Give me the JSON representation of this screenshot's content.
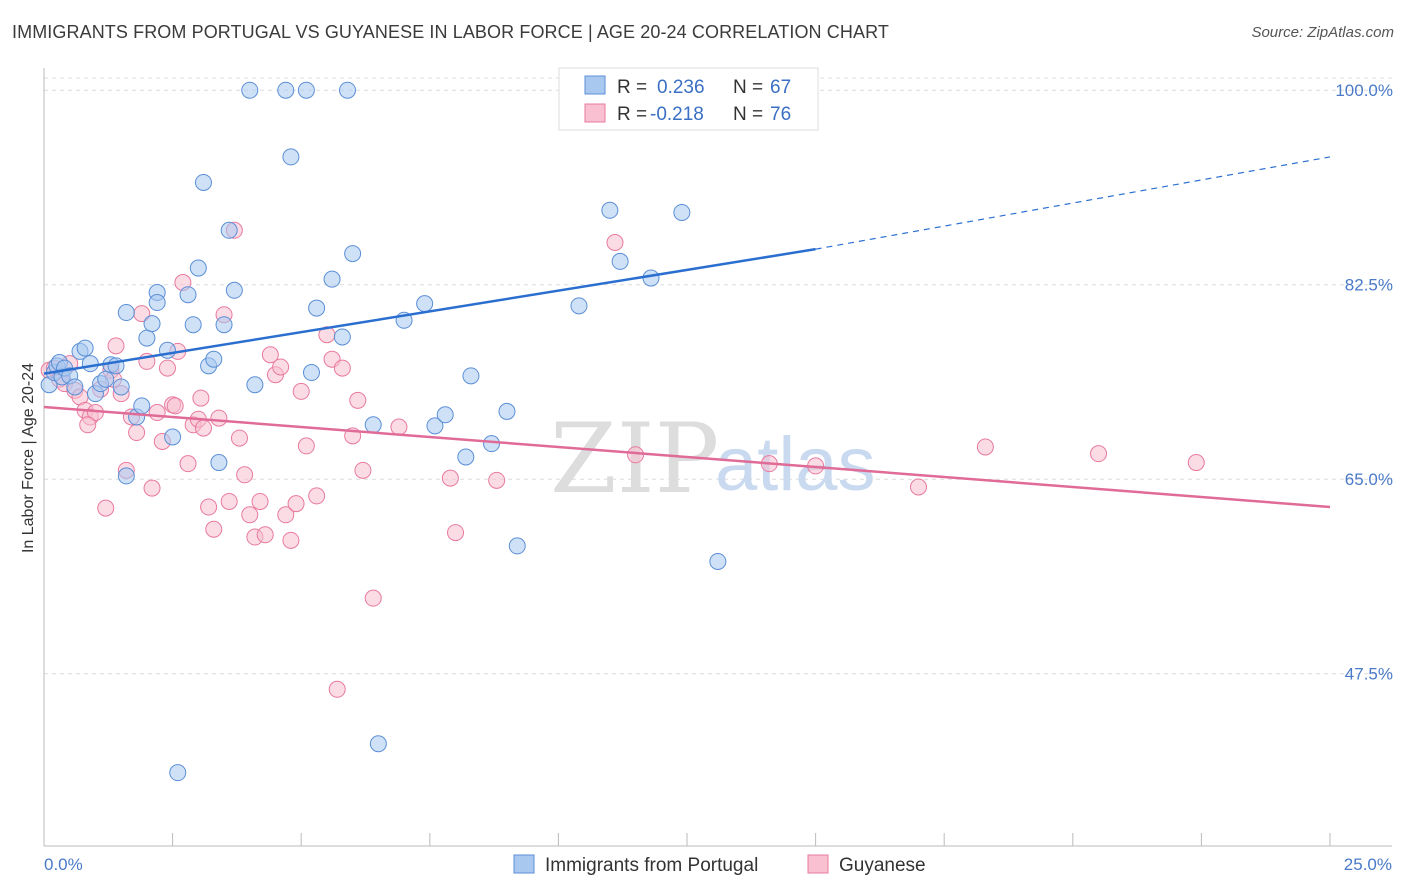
{
  "title": "IMMIGRANTS FROM PORTUGAL VS GUYANESE IN LABOR FORCE | AGE 20-24 CORRELATION CHART",
  "source": "Source: ZipAtlas.com",
  "watermark": {
    "zip": "ZIP",
    "atlas": "atlas"
  },
  "chart_data": {
    "type": "scatter",
    "xlabel": "",
    "ylabel": "In Labor Force | Age 20-24",
    "xlim": [
      0,
      25
    ],
    "ylim": [
      32.0,
      102.0
    ],
    "x_tick_labels": [
      "0.0%",
      "25.0%"
    ],
    "y_ticks": [
      47.5,
      65.0,
      82.5,
      100.0
    ],
    "y_tick_labels": [
      "47.5%",
      "65.0%",
      "82.5%",
      "100.0%"
    ],
    "grid": true,
    "legend_top": [
      {
        "r_label": "R = ",
        "r_value": "0.236",
        "n_label": "N = ",
        "n_value": "67"
      },
      {
        "r_label": "R = ",
        "r_value": "-0.218",
        "n_label": "N = ",
        "n_value": "76"
      }
    ],
    "series": [
      {
        "name": "Immigrants from Portugal",
        "color": "#a8c8f0",
        "stroke": "#5b8fd6",
        "trend": {
          "x0": 0,
          "y0": 74.5,
          "x1": 15,
          "y1": 85.7,
          "dash_to_x": 25,
          "dash_to_y": 94.0,
          "color": "#2a6fd0"
        },
        "points": [
          [
            0.1,
            73.5
          ],
          [
            0.2,
            74.6
          ],
          [
            0.25,
            75.2
          ],
          [
            0.3,
            75.5
          ],
          [
            0.35,
            74.2
          ],
          [
            0.4,
            75.0
          ],
          [
            0.5,
            74.3
          ],
          [
            0.6,
            73.3
          ],
          [
            0.7,
            76.5
          ],
          [
            0.8,
            76.8
          ],
          [
            0.9,
            75.4
          ],
          [
            1.0,
            72.7
          ],
          [
            1.1,
            73.6
          ],
          [
            1.2,
            74.0
          ],
          [
            1.3,
            75.3
          ],
          [
            1.4,
            75.2
          ],
          [
            1.5,
            73.3
          ],
          [
            1.6,
            65.3
          ],
          [
            1.6,
            80.0
          ],
          [
            1.8,
            70.6
          ],
          [
            1.9,
            71.6
          ],
          [
            2.0,
            77.7
          ],
          [
            2.1,
            79.0
          ],
          [
            2.2,
            81.8
          ],
          [
            2.2,
            80.9
          ],
          [
            2.4,
            76.6
          ],
          [
            2.5,
            68.8
          ],
          [
            2.6,
            38.6
          ],
          [
            2.8,
            81.6
          ],
          [
            2.9,
            78.9
          ],
          [
            3.0,
            84.0
          ],
          [
            3.1,
            91.7
          ],
          [
            3.2,
            75.2
          ],
          [
            3.3,
            75.8
          ],
          [
            3.4,
            66.5
          ],
          [
            3.5,
            78.9
          ],
          [
            3.6,
            87.4
          ],
          [
            3.7,
            82.0
          ],
          [
            4.0,
            100.0
          ],
          [
            4.1,
            73.5
          ],
          [
            4.7,
            100.0
          ],
          [
            4.8,
            94.0
          ],
          [
            5.1,
            100.0
          ],
          [
            5.2,
            74.6
          ],
          [
            5.3,
            80.4
          ],
          [
            5.6,
            83.0
          ],
          [
            5.8,
            77.8
          ],
          [
            5.9,
            100.0
          ],
          [
            6.0,
            85.3
          ],
          [
            6.4,
            69.9
          ],
          [
            7.0,
            79.3
          ],
          [
            7.4,
            80.8
          ],
          [
            7.6,
            69.8
          ],
          [
            7.8,
            70.8
          ],
          [
            8.2,
            67.0
          ],
          [
            8.3,
            74.3
          ],
          [
            8.7,
            68.2
          ],
          [
            9.0,
            71.1
          ],
          [
            9.2,
            59.0
          ],
          [
            10.4,
            80.6
          ],
          [
            11.0,
            89.2
          ],
          [
            11.2,
            84.6
          ],
          [
            11.6,
            100.0
          ],
          [
            11.8,
            83.1
          ],
          [
            12.4,
            89.0
          ],
          [
            13.1,
            57.6
          ],
          [
            6.5,
            41.2
          ]
        ]
      },
      {
        "name": "Guyanese",
        "color": "#f8c0d0",
        "stroke": "#e87a9f",
        "trend": {
          "x0": 0,
          "y0": 71.5,
          "x1": 25,
          "y1": 62.5,
          "color": "#e06b97"
        },
        "points": [
          [
            0.1,
            74.8
          ],
          [
            0.2,
            75.0
          ],
          [
            0.3,
            74.0
          ],
          [
            0.4,
            73.6
          ],
          [
            0.5,
            75.4
          ],
          [
            0.6,
            73.0
          ],
          [
            0.7,
            72.4
          ],
          [
            0.8,
            71.2
          ],
          [
            0.9,
            70.6
          ],
          [
            1.0,
            71.0
          ],
          [
            1.1,
            73.1
          ],
          [
            1.2,
            62.4
          ],
          [
            1.3,
            74.8
          ],
          [
            1.4,
            77.0
          ],
          [
            1.5,
            72.7
          ],
          [
            1.6,
            65.8
          ],
          [
            1.7,
            70.6
          ],
          [
            1.8,
            69.2
          ],
          [
            1.9,
            79.9
          ],
          [
            2.0,
            75.6
          ],
          [
            2.1,
            64.2
          ],
          [
            2.2,
            71.0
          ],
          [
            2.3,
            68.4
          ],
          [
            2.4,
            75.0
          ],
          [
            2.5,
            71.7
          ],
          [
            2.6,
            76.5
          ],
          [
            2.7,
            82.7
          ],
          [
            2.8,
            66.4
          ],
          [
            2.9,
            69.9
          ],
          [
            3.0,
            70.4
          ],
          [
            3.1,
            69.6
          ],
          [
            3.2,
            62.5
          ],
          [
            3.3,
            60.5
          ],
          [
            3.4,
            70.5
          ],
          [
            3.5,
            79.8
          ],
          [
            3.6,
            63.0
          ],
          [
            3.7,
            87.4
          ],
          [
            3.8,
            68.7
          ],
          [
            3.9,
            65.4
          ],
          [
            4.0,
            61.8
          ],
          [
            4.1,
            59.8
          ],
          [
            4.2,
            63.0
          ],
          [
            4.3,
            60.0
          ],
          [
            4.4,
            76.2
          ],
          [
            4.5,
            74.4
          ],
          [
            4.6,
            75.1
          ],
          [
            4.7,
            61.8
          ],
          [
            4.8,
            59.5
          ],
          [
            4.9,
            62.8
          ],
          [
            5.0,
            72.9
          ],
          [
            5.1,
            68.0
          ],
          [
            5.3,
            63.5
          ],
          [
            5.5,
            78.0
          ],
          [
            5.6,
            75.8
          ],
          [
            5.7,
            46.1
          ],
          [
            5.8,
            75.0
          ],
          [
            6.0,
            68.9
          ],
          [
            6.1,
            72.1
          ],
          [
            6.2,
            65.8
          ],
          [
            6.4,
            54.3
          ],
          [
            6.9,
            69.7
          ],
          [
            7.9,
            65.1
          ],
          [
            8.0,
            60.2
          ],
          [
            8.8,
            64.9
          ],
          [
            11.5,
            67.2
          ],
          [
            14.1,
            66.4
          ],
          [
            15.0,
            66.2
          ],
          [
            17.0,
            64.3
          ],
          [
            18.3,
            67.9
          ],
          [
            20.5,
            67.3
          ],
          [
            22.4,
            66.5
          ],
          [
            11.1,
            86.3
          ],
          [
            2.55,
            71.6
          ],
          [
            3.05,
            72.3
          ],
          [
            1.35,
            74.0
          ],
          [
            0.85,
            69.9
          ]
        ]
      }
    ]
  },
  "legend_bottom": [
    "Immigrants from Portugal",
    "Guyanese"
  ]
}
